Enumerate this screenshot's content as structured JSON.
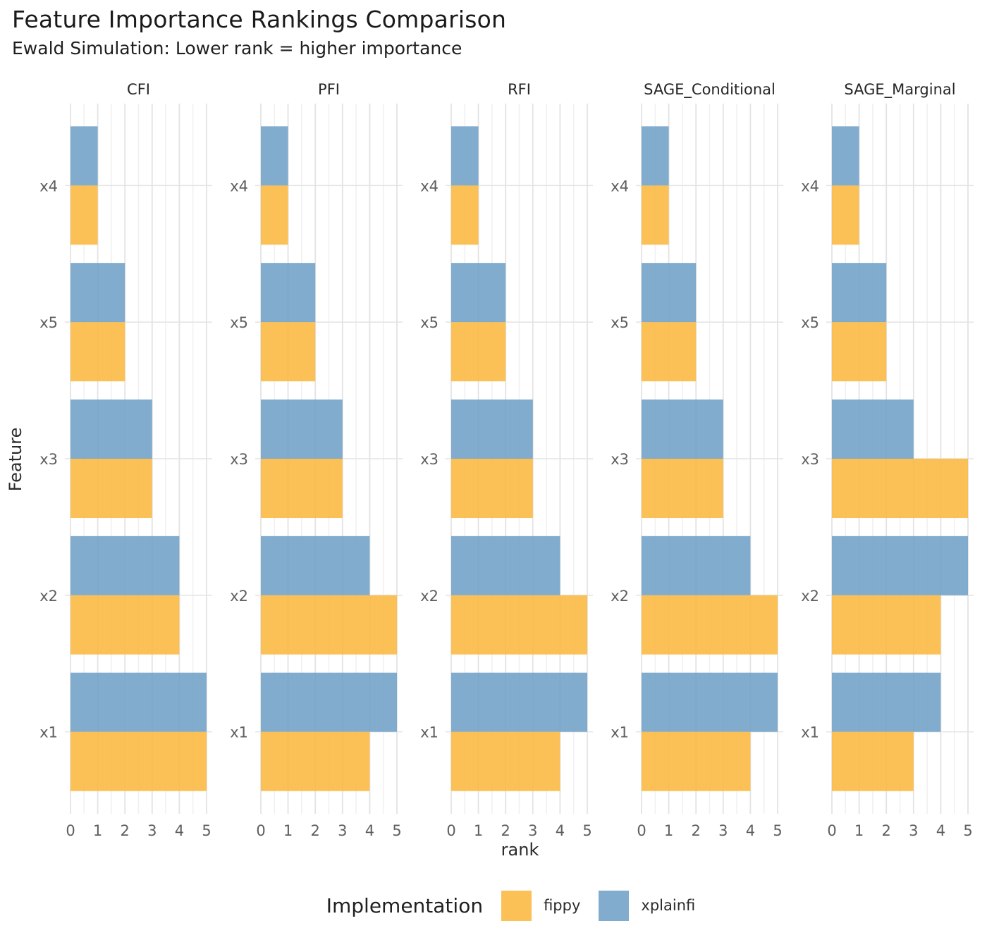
{
  "chart_data": {
    "type": "bar",
    "orientation": "horizontal",
    "faceted": true,
    "title": "Feature Importance Rankings Comparison",
    "subtitle": "Ewald Simulation: Lower rank = higher importance",
    "xlabel": "rank",
    "ylabel": "Feature",
    "xlim": [
      0,
      5
    ],
    "x_ticks": [
      "0",
      "1",
      "2",
      "3",
      "4",
      "5"
    ],
    "categories_top_to_bottom": [
      "x4",
      "x5",
      "x3",
      "x2",
      "x1"
    ],
    "grid": "vertical major at integers, vertical minor at halves, horizontal major at category centers",
    "legend_position": "bottom",
    "facets": [
      {
        "label": "CFI",
        "series": [
          {
            "name": "fippy",
            "values": [
              1,
              2,
              3,
              4,
              5
            ]
          },
          {
            "name": "xplainfi",
            "values": [
              1,
              2,
              3,
              4,
              5
            ]
          }
        ]
      },
      {
        "label": "PFI",
        "series": [
          {
            "name": "fippy",
            "values": [
              1,
              2,
              3,
              5,
              4
            ]
          },
          {
            "name": "xplainfi",
            "values": [
              1,
              2,
              3,
              4,
              5
            ]
          }
        ]
      },
      {
        "label": "RFI",
        "series": [
          {
            "name": "fippy",
            "values": [
              1,
              2,
              3,
              5,
              4
            ]
          },
          {
            "name": "xplainfi",
            "values": [
              1,
              2,
              3,
              4,
              5
            ]
          }
        ]
      },
      {
        "label": "SAGE_Conditional",
        "series": [
          {
            "name": "fippy",
            "values": [
              1,
              2,
              3,
              5,
              4
            ]
          },
          {
            "name": "xplainfi",
            "values": [
              1,
              2,
              3,
              4,
              5
            ]
          }
        ]
      },
      {
        "label": "SAGE_Marginal",
        "series": [
          {
            "name": "fippy",
            "values": [
              1,
              2,
              5,
              4,
              3
            ]
          },
          {
            "name": "xplainfi",
            "values": [
              1,
              2,
              3,
              5,
              4
            ]
          }
        ]
      }
    ],
    "legend": {
      "title": "Implementation",
      "entries": [
        {
          "label": "fippy",
          "color": "#FBB840"
        },
        {
          "label": "xplainfi",
          "color": "#6FA0C7"
        }
      ]
    },
    "colors": {
      "grid_major": "#E3E3E3",
      "grid_minor": "#F1F1F1",
      "tick_text": "#5F5F5F",
      "strip_text": "#262626"
    }
  }
}
